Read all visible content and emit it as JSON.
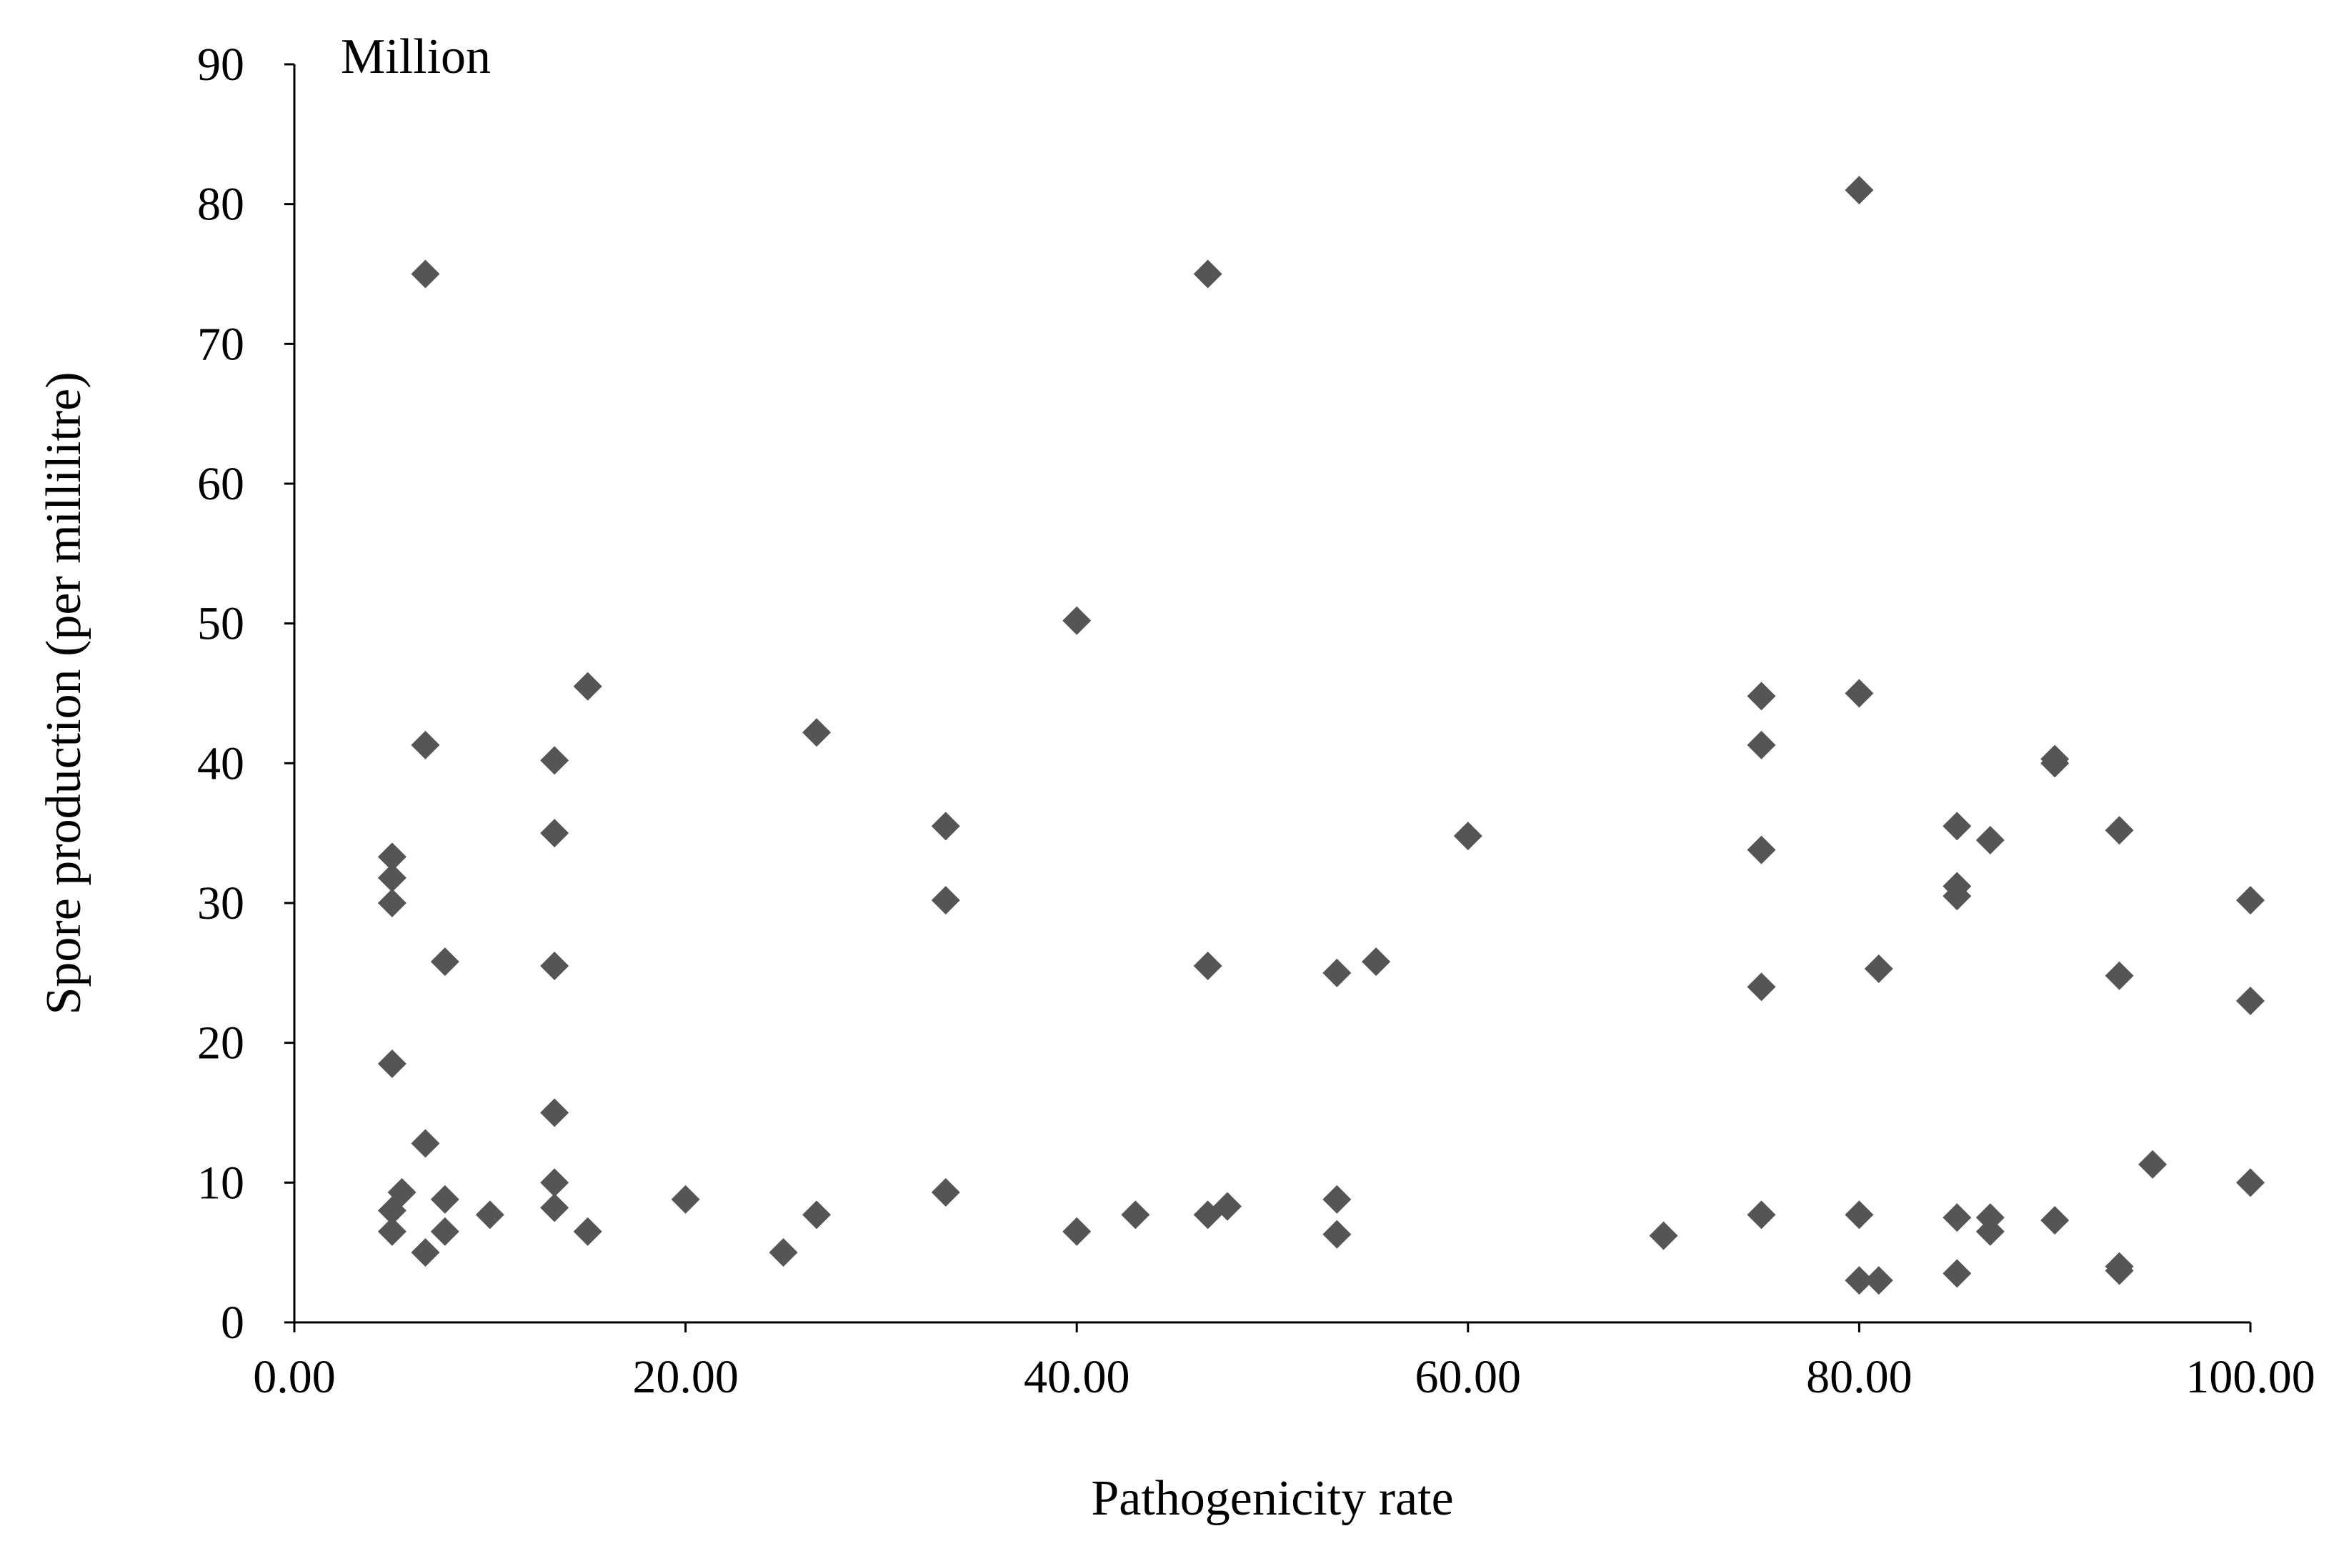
{
  "chart_data": {
    "type": "scatter",
    "xlabel": "Pathogenicity rate",
    "ylabel": "Spore production (per millilitre)",
    "unit_label": "Million",
    "xlim": [
      0,
      100
    ],
    "ylim": [
      0,
      90
    ],
    "x_ticks": [
      0,
      20,
      40,
      60,
      80,
      100
    ],
    "x_tick_labels": [
      "0.00",
      "20.00",
      "40.00",
      "60.00",
      "80.00",
      "100.00"
    ],
    "y_ticks": [
      0,
      10,
      20,
      30,
      40,
      50,
      60,
      70,
      80,
      90
    ],
    "y_tick_labels": [
      "0",
      "10",
      "20",
      "30",
      "40",
      "50",
      "60",
      "70",
      "80",
      "90"
    ],
    "grid": false,
    "legend": "none",
    "marker": "diamond",
    "marker_color": "#555555",
    "series": [
      {
        "points": [
          {
            "x": 5,
            "y": 33.3
          },
          {
            "x": 5,
            "y": 31.8
          },
          {
            "x": 5,
            "y": 30
          },
          {
            "x": 5,
            "y": 18.5
          },
          {
            "x": 5,
            "y": 8
          },
          {
            "x": 5,
            "y": 6.5
          },
          {
            "x": 5.5,
            "y": 9.3
          },
          {
            "x": 6.7,
            "y": 75
          },
          {
            "x": 6.7,
            "y": 41.3
          },
          {
            "x": 6.7,
            "y": 12.8
          },
          {
            "x": 6.7,
            "y": 5
          },
          {
            "x": 7.7,
            "y": 25.8
          },
          {
            "x": 7.7,
            "y": 8.8
          },
          {
            "x": 7.7,
            "y": 6.5
          },
          {
            "x": 10,
            "y": 7.7
          },
          {
            "x": 13.3,
            "y": 40.2
          },
          {
            "x": 13.3,
            "y": 35
          },
          {
            "x": 13.3,
            "y": 25.5
          },
          {
            "x": 13.3,
            "y": 15
          },
          {
            "x": 13.3,
            "y": 10
          },
          {
            "x": 13.3,
            "y": 8.2
          },
          {
            "x": 15,
            "y": 45.5
          },
          {
            "x": 15,
            "y": 6.5
          },
          {
            "x": 20,
            "y": 8.8
          },
          {
            "x": 25,
            "y": 5
          },
          {
            "x": 26.7,
            "y": 42.2
          },
          {
            "x": 26.7,
            "y": 7.7
          },
          {
            "x": 33.3,
            "y": 35.5
          },
          {
            "x": 33.3,
            "y": 30.2
          },
          {
            "x": 33.3,
            "y": 9.3
          },
          {
            "x": 40,
            "y": 50.2
          },
          {
            "x": 40,
            "y": 6.5
          },
          {
            "x": 43,
            "y": 7.7
          },
          {
            "x": 46.7,
            "y": 75
          },
          {
            "x": 46.7,
            "y": 25.5
          },
          {
            "x": 46.7,
            "y": 7.7
          },
          {
            "x": 47.7,
            "y": 8.3
          },
          {
            "x": 53.3,
            "y": 25
          },
          {
            "x": 53.3,
            "y": 8.8
          },
          {
            "x": 53.3,
            "y": 6.3
          },
          {
            "x": 55.3,
            "y": 25.8
          },
          {
            "x": 60,
            "y": 34.8
          },
          {
            "x": 70,
            "y": 6.2
          },
          {
            "x": 75,
            "y": 44.8
          },
          {
            "x": 75,
            "y": 41.3
          },
          {
            "x": 75,
            "y": 33.8
          },
          {
            "x": 75,
            "y": 24
          },
          {
            "x": 75,
            "y": 7.7
          },
          {
            "x": 80,
            "y": 81
          },
          {
            "x": 80,
            "y": 45
          },
          {
            "x": 80,
            "y": 7.7
          },
          {
            "x": 80,
            "y": 3
          },
          {
            "x": 81,
            "y": 25.3
          },
          {
            "x": 81,
            "y": 3
          },
          {
            "x": 85,
            "y": 35.5
          },
          {
            "x": 85,
            "y": 31.2
          },
          {
            "x": 85,
            "y": 30.5
          },
          {
            "x": 85,
            "y": 7.5
          },
          {
            "x": 85,
            "y": 3.5
          },
          {
            "x": 86.7,
            "y": 34.5
          },
          {
            "x": 86.7,
            "y": 7.5
          },
          {
            "x": 86.7,
            "y": 6.5
          },
          {
            "x": 90,
            "y": 40.3
          },
          {
            "x": 90,
            "y": 40
          },
          {
            "x": 90,
            "y": 7.3
          },
          {
            "x": 93.3,
            "y": 35.2
          },
          {
            "x": 93.3,
            "y": 24.8
          },
          {
            "x": 93.3,
            "y": 4
          },
          {
            "x": 93.3,
            "y": 3.7
          },
          {
            "x": 95,
            "y": 11.3
          },
          {
            "x": 100,
            "y": 30.2
          },
          {
            "x": 100,
            "y": 23
          },
          {
            "x": 100,
            "y": 10
          }
        ]
      }
    ]
  }
}
